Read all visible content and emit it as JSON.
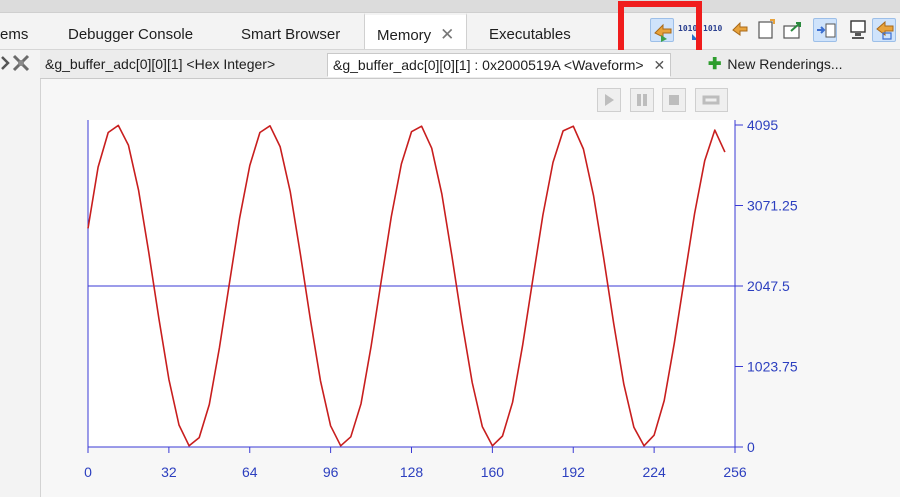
{
  "view_tabs": [
    {
      "label": "ems"
    },
    {
      "label": "Debugger Console"
    },
    {
      "label": "Smart Browser"
    },
    {
      "label": "Memory",
      "active": true,
      "close": "✕"
    },
    {
      "label": "Executables"
    }
  ],
  "toolbar": {
    "icons": [
      "import-memory-icon",
      "binary-toggle-icon",
      "binary-toggle-icon",
      "refresh-icon",
      "new-doc-icon",
      "export-icon",
      "layout-icon",
      "display-icon",
      "sync-icon"
    ],
    "highlight_color": "#f01c1c"
  },
  "rendering_tabs": [
    {
      "label": "&g_buffer_adc[0][0][1] <Hex Integer>"
    },
    {
      "label": "&g_buffer_adc[0][0][1] : 0x2000519A <Waveform>",
      "active": true,
      "close": "✕"
    },
    {
      "label": "New Renderings..."
    }
  ],
  "playback": {
    "buttons": [
      "play",
      "pause",
      "stop",
      "loop"
    ]
  },
  "chart_data": {
    "type": "line",
    "title": "",
    "xlabel": "",
    "ylabel": "",
    "xlim": [
      0,
      256
    ],
    "ylim": [
      0,
      4095
    ],
    "x_ticks": [
      "0",
      "32",
      "64",
      "96",
      "128",
      "160",
      "192",
      "224",
      "256"
    ],
    "y_ticks": [
      "0",
      "1023.75",
      "2047.5",
      "3071.25",
      "4095"
    ],
    "reference_line": 2047.5,
    "series": [
      {
        "color": "#c81e1e",
        "x": [
          0,
          4,
          8,
          12,
          16,
          20,
          24,
          28,
          32,
          36,
          40,
          44,
          48,
          52,
          56,
          60,
          64,
          68,
          72,
          76,
          80,
          84,
          88,
          92,
          96,
          100,
          104,
          108,
          112,
          116,
          120,
          124,
          128,
          132,
          136,
          140,
          144,
          148,
          152,
          156,
          160,
          164,
          168,
          172,
          176,
          180,
          184,
          188,
          192,
          196,
          200,
          204,
          208,
          212,
          216,
          220,
          224,
          228,
          232,
          236,
          240,
          244,
          248,
          252
        ],
        "y": [
          2780,
          3560,
          4000,
          4090,
          3840,
          3270,
          2480,
          1640,
          860,
          280,
          15,
          120,
          540,
          1260,
          2090,
          2910,
          3580,
          4000,
          4085,
          3820,
          3250,
          2460,
          1620,
          840,
          270,
          15,
          130,
          550,
          1280,
          2110,
          2930,
          3600,
          4010,
          4080,
          3800,
          3220,
          2430,
          1590,
          820,
          260,
          15,
          140,
          570,
          1300,
          2130,
          2950,
          3620,
          4020,
          4080,
          3790,
          3200,
          2410,
          1570,
          800,
          250,
          15,
          150,
          590,
          1320,
          2150,
          2970,
          3640,
          4030,
          3750
        ]
      }
    ]
  }
}
